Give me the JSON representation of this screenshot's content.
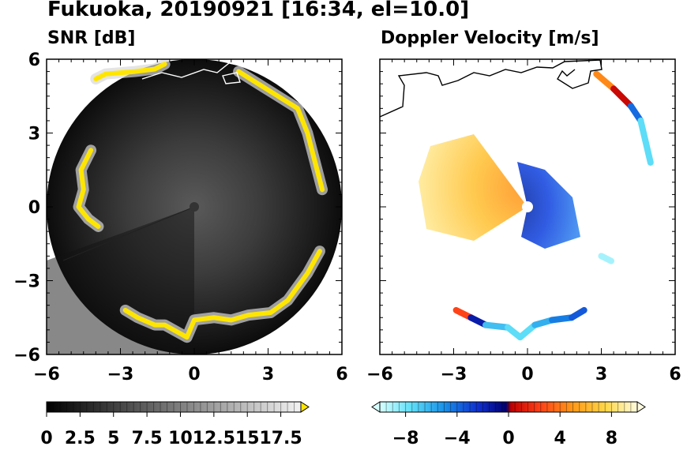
{
  "title": "Fukuoka, 20190921 [16:34, el=10.0]",
  "panels": {
    "snr": {
      "title": "SNR [dB]"
    },
    "doppler": {
      "title": "Doppler Velocity [m/s]"
    }
  },
  "colors": {
    "snr_echo": "#ffe600",
    "doppler_negative": "#1030c8",
    "doppler_positive": "#ff8a10",
    "coastline": "#000000"
  },
  "chart_data": [
    {
      "type": "heatmap",
      "name": "SNR",
      "title": "SNR [dB]",
      "x_ticks": [
        -6,
        -3,
        0,
        3,
        6
      ],
      "y_ticks": [
        -6,
        -3,
        0,
        3,
        6
      ],
      "xlim": [
        -6,
        6
      ],
      "ylim": [
        -6,
        6
      ],
      "colorbar": {
        "range": [
          0,
          19
        ],
        "ticks": [
          "0",
          "2.5",
          "5",
          "7.5",
          "10",
          "12.5",
          "15",
          "17.5"
        ],
        "tick_values": [
          0,
          2.5,
          5,
          7.5,
          10,
          12.5,
          15,
          17.5
        ],
        "extend": "max"
      },
      "echo_segments": [
        {
          "x": [
            -4.0,
            -3.6,
            -2.4,
            -1.6,
            -1.2
          ],
          "y": [
            5.2,
            5.4,
            5.5,
            5.6,
            5.8
          ]
        },
        {
          "x": [
            1.8,
            2.6,
            3.4,
            4.2,
            4.6,
            5.2
          ],
          "y": [
            5.5,
            5.0,
            4.5,
            4.0,
            3.0,
            0.7
          ]
        },
        {
          "x": [
            -4.2,
            -4.6,
            -4.5,
            -4.7,
            -4.3,
            -3.9
          ],
          "y": [
            2.3,
            1.5,
            0.7,
            0.0,
            -0.5,
            -0.8
          ]
        },
        {
          "x": [
            -2.8,
            -2.3,
            -1.6,
            -1.2,
            -0.3,
            0.0,
            0.8,
            1.5,
            2.2,
            3.1,
            3.8,
            4.6,
            5.1
          ],
          "y": [
            -4.2,
            -4.5,
            -4.8,
            -4.8,
            -5.3,
            -4.6,
            -4.5,
            -4.6,
            -4.4,
            -4.3,
            -3.8,
            -2.7,
            -1.8
          ]
        }
      ]
    },
    {
      "type": "heatmap",
      "name": "Doppler Velocity",
      "title": "Doppler Velocity [m/s]",
      "x_ticks": [
        -6,
        -3,
        0,
        3,
        6
      ],
      "y_ticks": [
        -6,
        -3,
        0,
        3,
        6
      ],
      "xlim": [
        -6,
        6
      ],
      "ylim": [
        -6,
        6
      ],
      "colorbar": {
        "range": [
          -10,
          10
        ],
        "ticks": [
          "−8",
          "−4",
          "0",
          "4",
          "8"
        ],
        "tick_values": [
          -8,
          -4,
          0,
          4,
          8
        ],
        "extend": "both"
      },
      "echo_segments": [
        {
          "x": [
            2.8,
            3.5,
            4.2,
            4.6,
            5.0
          ],
          "y": [
            5.4,
            4.8,
            4.1,
            3.5,
            1.8
          ],
          "v": [
            6,
            3,
            -2,
            -6,
            -9
          ]
        },
        {
          "x": [
            -2.9,
            -2.3,
            -1.7,
            -0.8,
            -0.3,
            0.3,
            1.0,
            1.8,
            2.3
          ],
          "y": [
            -4.2,
            -4.5,
            -4.8,
            -4.9,
            -5.3,
            -4.8,
            -4.6,
            -4.5,
            -4.2
          ],
          "v": [
            2,
            3,
            -6,
            -7,
            -8,
            -7,
            -5,
            -4,
            -3
          ]
        },
        {
          "x": [
            3.0,
            3.4
          ],
          "y": [
            -2.0,
            -2.2
          ],
          "v": [
            -9,
            -9
          ]
        }
      ]
    }
  ]
}
